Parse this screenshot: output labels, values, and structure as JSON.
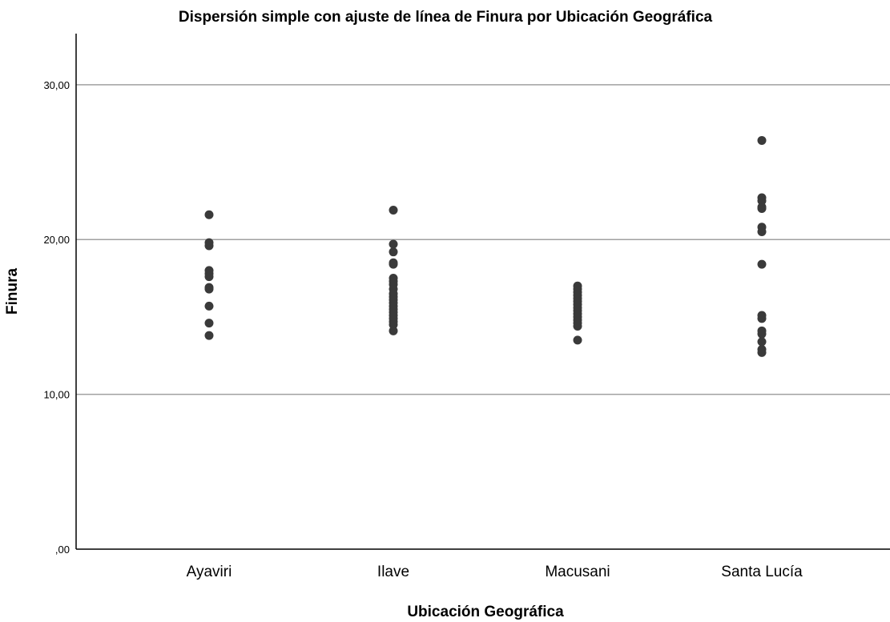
{
  "chart_data": {
    "type": "scatter",
    "title": "Dispersión simple con ajuste de línea de Finura por Ubicación Geográfica",
    "xlabel": "Ubicación Geográfica",
    "ylabel": "Finura",
    "categories": [
      "Ayaviri",
      "Ilave",
      "Macusani",
      "Santa Lucía"
    ],
    "y_ticks": [
      0,
      10,
      20,
      30
    ],
    "y_tick_labels": [
      ",00",
      "10,00",
      "20,00",
      "30,00"
    ],
    "ylim": [
      0,
      33.3
    ],
    "grid": "horizontal",
    "colors": {
      "point": "#3a3a3a",
      "grid": "#a0a0a0",
      "axis": "#000000"
    },
    "series": [
      {
        "category": "Ayaviri",
        "values": [
          21.6,
          19.8,
          19.6,
          18.0,
          17.8,
          17.6,
          16.9,
          16.8,
          15.7,
          14.6,
          13.8
        ]
      },
      {
        "category": "Ilave",
        "values": [
          21.9,
          19.7,
          19.2,
          18.5,
          18.4,
          17.5,
          17.3,
          17.1,
          16.8,
          16.5,
          16.3,
          16.1,
          15.9,
          15.7,
          15.5,
          15.3,
          15.1,
          14.9,
          14.7,
          14.5,
          14.1
        ]
      },
      {
        "category": "Macusani",
        "values": [
          17.0,
          16.8,
          16.6,
          16.4,
          16.2,
          16.0,
          15.8,
          15.6,
          15.4,
          15.2,
          15.0,
          14.8,
          14.6,
          14.4,
          13.5
        ]
      },
      {
        "category": "Santa Lucía",
        "values": [
          26.4,
          22.7,
          22.5,
          22.1,
          22.0,
          20.8,
          20.5,
          18.4,
          15.1,
          14.9,
          14.1,
          13.9,
          13.4,
          12.9,
          12.7
        ]
      }
    ]
  }
}
